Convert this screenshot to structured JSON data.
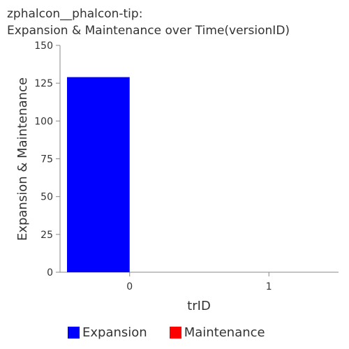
{
  "title": {
    "line1": "zphalcon__phalcon-tip:",
    "line2": "Expansion & Maintenance over Time(versionID)"
  },
  "chart_data": {
    "type": "bar",
    "title": "zphalcon__phalcon-tip: Expansion & Maintenance over Time(versionID)",
    "xlabel": "trID",
    "ylabel": "Expansion & Maintenance",
    "categories": [
      "0",
      "1"
    ],
    "ylim": [
      0,
      150
    ],
    "yticks": [
      0,
      25,
      50,
      75,
      100,
      125,
      150
    ],
    "grid": false,
    "legend_position": "bottom",
    "series": [
      {
        "name": "Expansion",
        "color": "#0000ff",
        "values": [
          129,
          0
        ]
      },
      {
        "name": "Maintenance",
        "color": "#ff0000",
        "values": [
          0,
          0
        ]
      }
    ]
  }
}
